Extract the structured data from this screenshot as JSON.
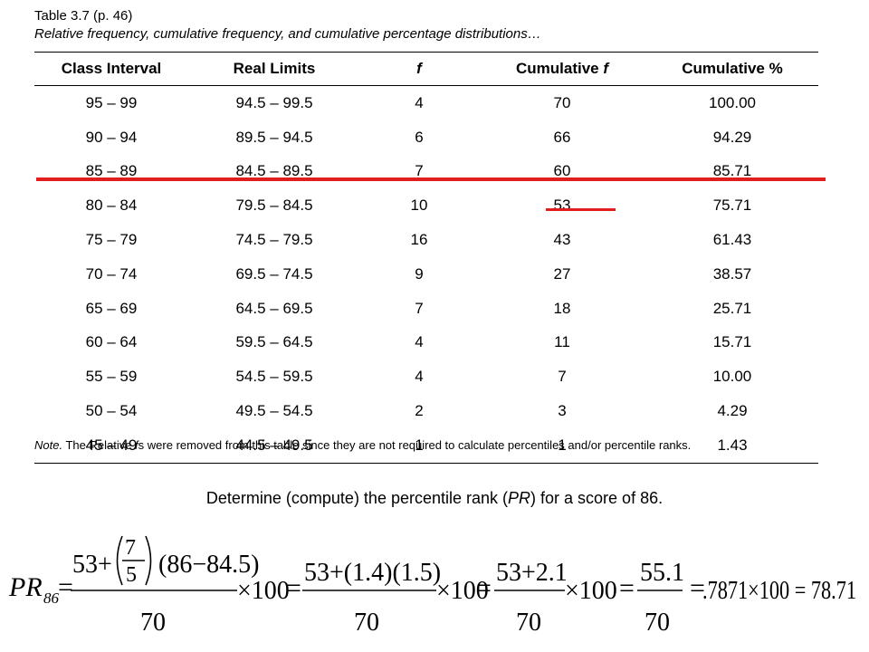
{
  "caption": {
    "label": "Table 3.7 (p. 46)",
    "description": "Relative frequency, cumulative frequency, and cumulative percentage distributions…"
  },
  "table": {
    "headers": [
      "Class Interval",
      "Real Limits",
      "f",
      "Cumulative f",
      "Cumulative %"
    ],
    "rows": [
      [
        "95 – 99",
        "94.5 – 99.5",
        "4",
        "70",
        "100.00"
      ],
      [
        "90 – 94",
        "89.5 – 94.5",
        "6",
        "66",
        "94.29"
      ],
      [
        "85 – 89",
        "84.5 – 89.5",
        "7",
        "60",
        "85.71"
      ],
      [
        "80 – 84",
        "79.5 – 84.5",
        "10",
        "53",
        "75.71"
      ],
      [
        "75 – 79",
        "74.5 – 79.5",
        "16",
        "43",
        "61.43"
      ],
      [
        "70 – 74",
        "69.5 – 74.5",
        "9",
        "27",
        "38.57"
      ],
      [
        "65 – 69",
        "64.5 – 69.5",
        "7",
        "18",
        "25.71"
      ],
      [
        "60 – 64",
        "59.5 – 64.5",
        "4",
        "11",
        "15.71"
      ],
      [
        "55 – 59",
        "54.5 – 59.5",
        "4",
        "7",
        "10.00"
      ],
      [
        "50 – 54",
        "49.5 – 54.5",
        "2",
        "3",
        "4.29"
      ],
      [
        "45 – 49",
        "44.5 – 49.5",
        "1",
        "1",
        "1.43"
      ]
    ]
  },
  "note": {
    "prefix": "Note.",
    "text_a": " The Relative ",
    "f_symbol": "f",
    "text_b": "s were removed from this table since they are not required to calculate percentiles and/or percentile ranks."
  },
  "question": {
    "text_a": "Determine (compute) the percentile rank (",
    "pr": "PR",
    "text_b": ") for a score of 86."
  },
  "formula": {
    "lhs": "PR",
    "lhs_sub": "86",
    "eq": "=",
    "t1_plus": "53+",
    "t1_frac_num": "7",
    "t1_frac_den": "5",
    "t1_tail": "(86−84.5)",
    "den": "70",
    "times100": "×100",
    "t2_num": "53+(1.4)(1.5)",
    "t3_num": "53+2.1",
    "t4_num": "55.1",
    "result": ".7871×100 = 78.71"
  },
  "highlight_color": "#e01e1e"
}
